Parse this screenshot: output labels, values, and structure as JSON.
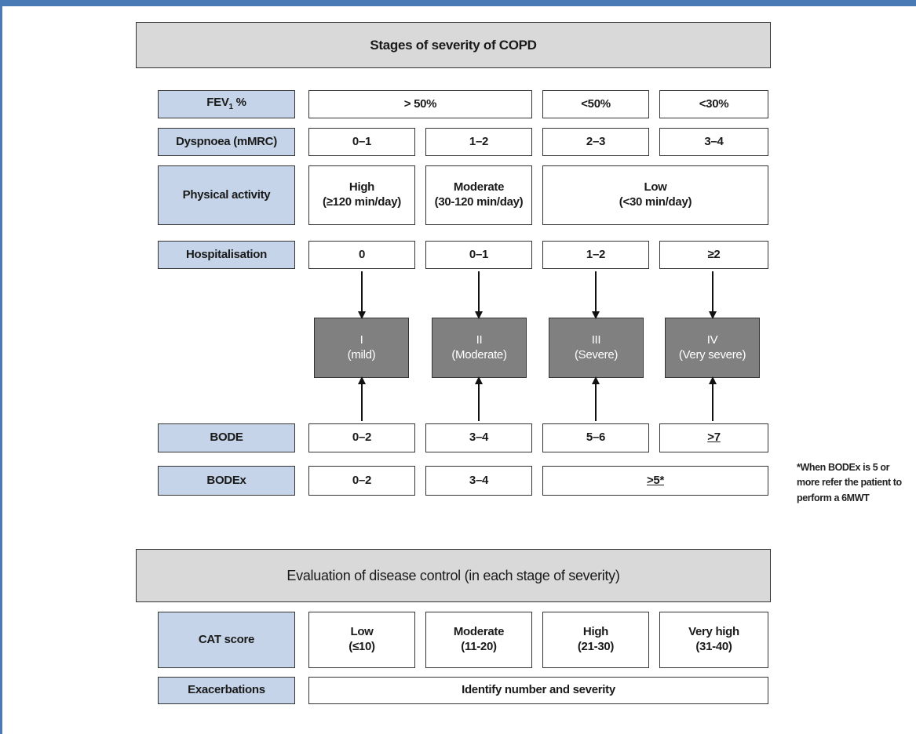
{
  "severity": {
    "title": "Stages of severity of COPD",
    "rows": [
      {
        "label": "FEV1 %",
        "values": [
          "> 50%",
          "<50%",
          "<30%"
        ]
      },
      {
        "label": "Dyspnoea (mMRC)",
        "values": [
          "0–1",
          "1–2",
          "2–3",
          "3–4"
        ]
      },
      {
        "label": "Physical activity",
        "values": [
          {
            "line1": "High",
            "line2": "(≥120 min/day)"
          },
          {
            "line1": "Moderate",
            "line2": "(30-120 min/day)"
          },
          {
            "line1": "Low",
            "line2": "(<30 min/day)"
          }
        ]
      },
      {
        "label": "Hospitalisation",
        "values": [
          "0",
          "0–1",
          "1–2",
          "≥2"
        ]
      }
    ],
    "stages": [
      {
        "num": "I",
        "name": "(mild)"
      },
      {
        "num": "II",
        "name": "(Moderate)"
      },
      {
        "num": "III",
        "name": "(Severe)"
      },
      {
        "num": "IV",
        "name": "(Very severe)"
      }
    ],
    "bode": {
      "label": "BODE",
      "values": [
        "0–2",
        "3–4",
        "5–6",
        ">7"
      ]
    },
    "bodex": {
      "label": "BODEx",
      "values": [
        "0–2",
        "3–4",
        ">5*"
      ]
    },
    "footnote": "*When BODEx is 5 or more refer the patient to perform a 6MWT"
  },
  "control": {
    "title": "Evaluation of disease control (in each stage of severity)",
    "cat": {
      "label": "CAT score",
      "values": [
        {
          "line1": "Low",
          "line2": "(≤10)"
        },
        {
          "line1": "Moderate",
          "line2": "(11-20)"
        },
        {
          "line1": "High",
          "line2": "(21-30)"
        },
        {
          "line1": "Very high",
          "line2": "(31-40)"
        }
      ]
    },
    "exacerbations": {
      "label": "Exacerbations",
      "value": "Identify number and severity"
    }
  },
  "colors": {
    "label_fill": "#c5d4e8",
    "header_fill": "#d9d9d9",
    "stage_fill": "#808080",
    "frame": "#4a7ab5"
  }
}
